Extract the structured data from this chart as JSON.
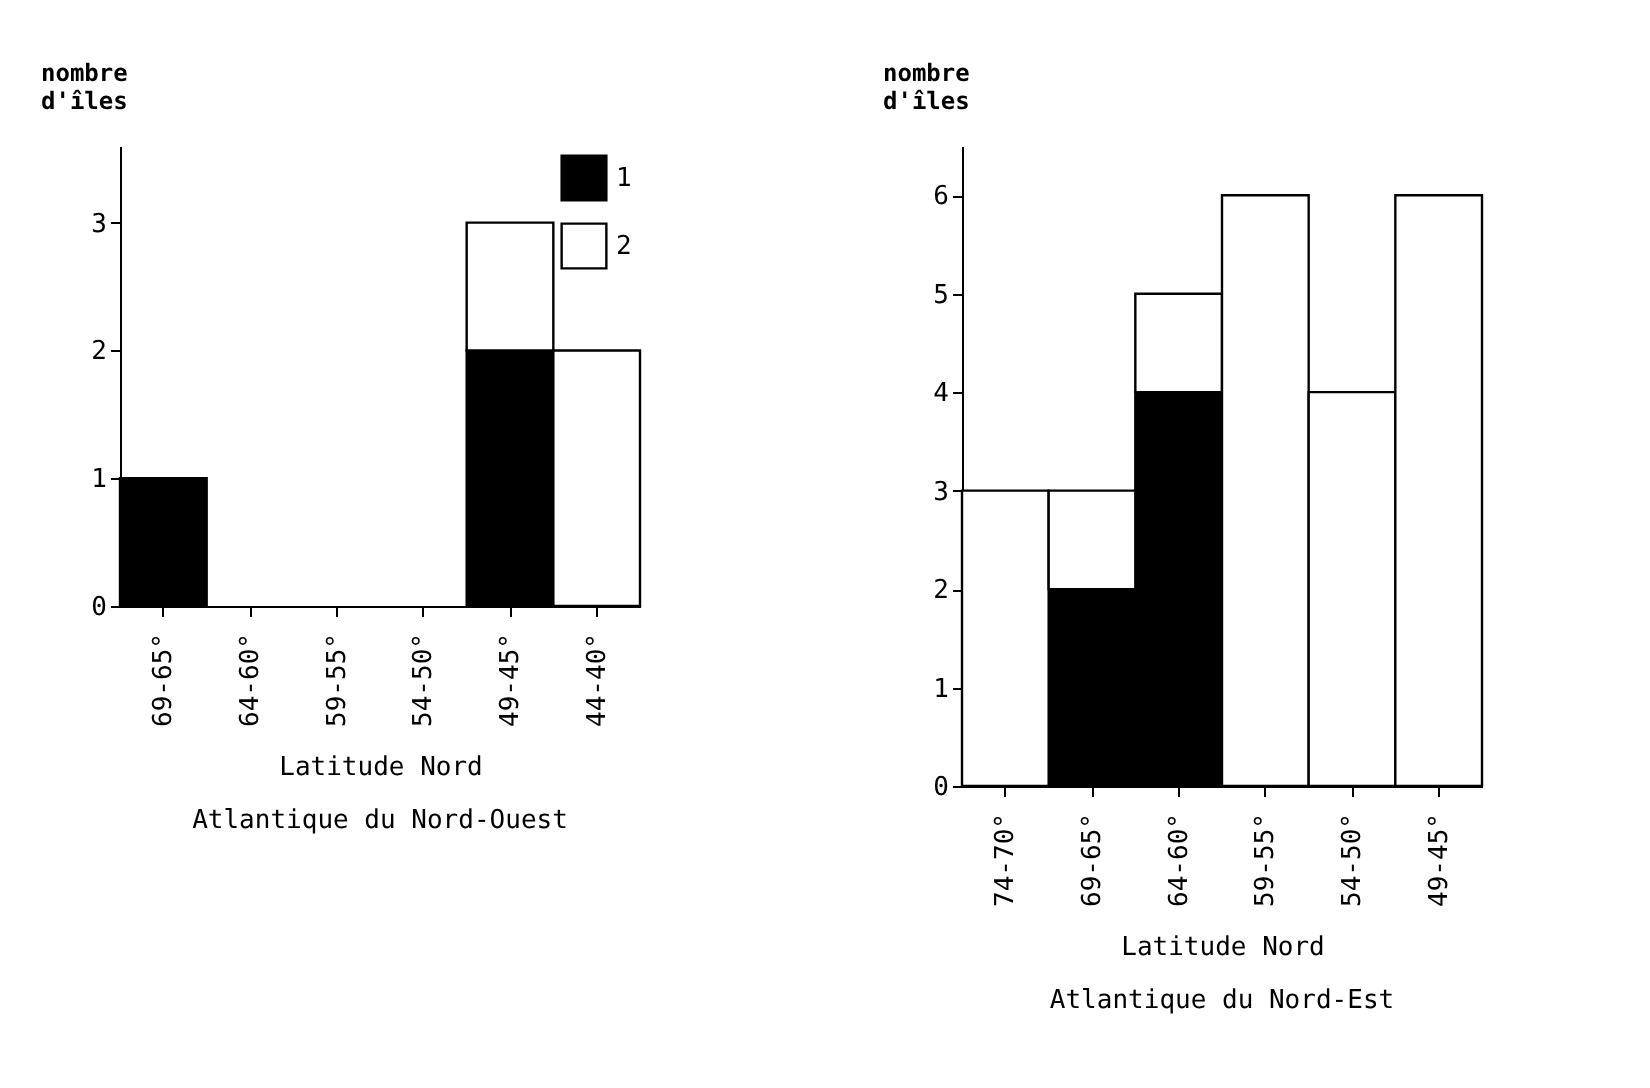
{
  "chart_data": [
    {
      "type": "bar",
      "title": "Atlantique du Nord-Ouest",
      "xlabel": "Latitude Nord",
      "ylabel": "nombre d'îles",
      "categories": [
        "69-65°",
        "64-60°",
        "59-55°",
        "54-50°",
        "49-45°",
        "44-40°"
      ],
      "stacked": true,
      "legend": "top right",
      "grid": false,
      "ylim": [
        0,
        3.6
      ],
      "yticks": [
        0,
        1,
        2,
        3
      ],
      "series": [
        {
          "name": "1",
          "color": "#000000",
          "values": [
            1,
            0,
            0,
            0,
            2,
            0
          ]
        },
        {
          "name": "2",
          "color": "#ffffff",
          "values": [
            0,
            0,
            0,
            0,
            1,
            2
          ]
        }
      ]
    },
    {
      "type": "bar",
      "title": "Atlantique du Nord-Est",
      "xlabel": "Latitude Nord",
      "ylabel": "nombre d'îles",
      "categories": [
        "74-70°",
        "69-65°",
        "64-60°",
        "59-55°",
        "54-50°",
        "49-45°"
      ],
      "stacked": true,
      "grid": false,
      "ylim": [
        0,
        6.5
      ],
      "yticks": [
        0,
        1,
        2,
        3,
        4,
        5,
        6
      ],
      "series": [
        {
          "color": "#000000",
          "values": [
            0,
            2,
            4,
            0,
            0,
            0
          ]
        },
        {
          "color": "#ffffff",
          "values": [
            3,
            1,
            1,
            6,
            4,
            6
          ]
        }
      ]
    }
  ]
}
